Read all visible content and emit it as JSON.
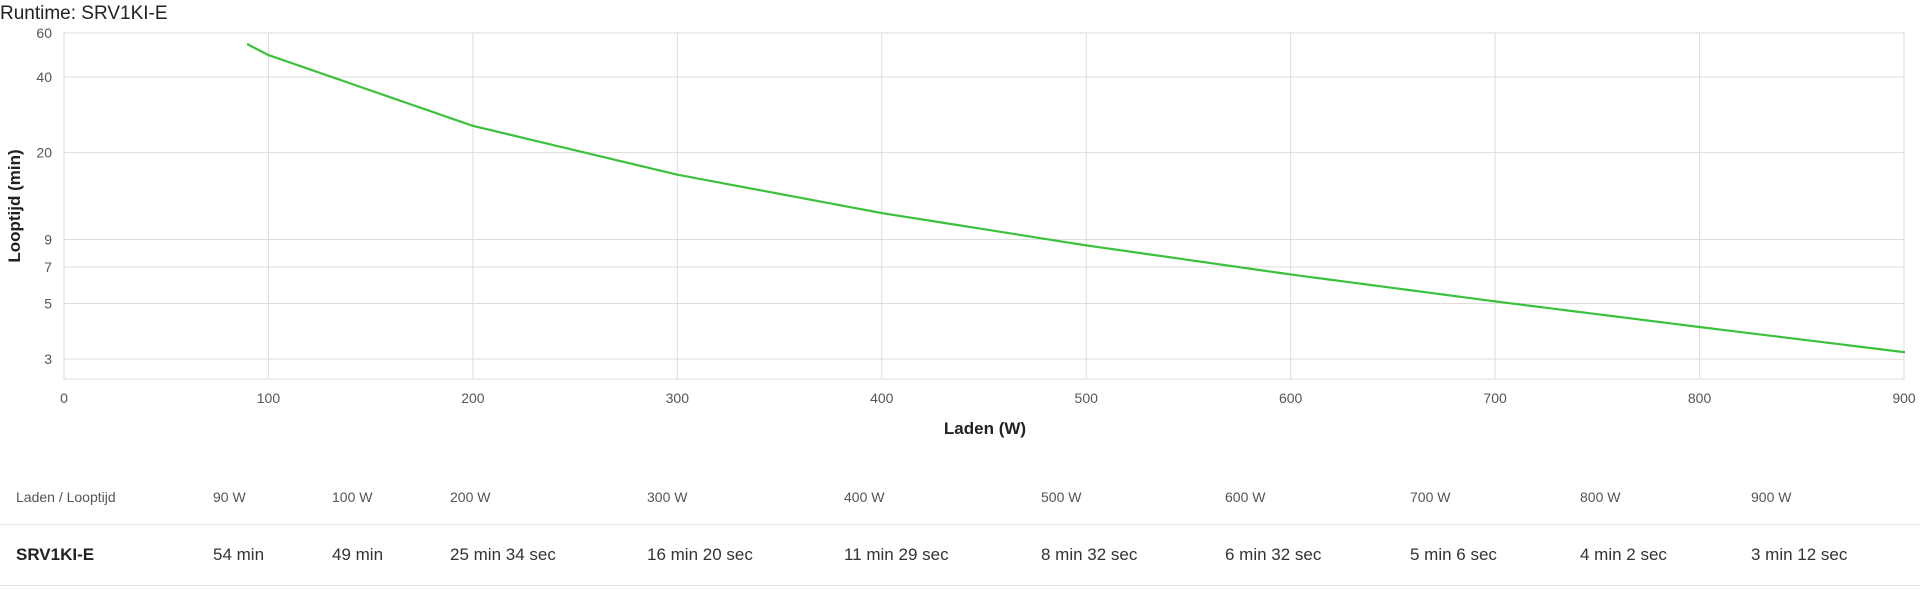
{
  "chart_data": {
    "type": "line",
    "title": "Runtime: SRV1KI-E",
    "xlabel": "Laden (W)",
    "ylabel": "Looptijd (min)",
    "xlim": [
      0,
      900
    ],
    "ylim": [
      2.5,
      60
    ],
    "yscale": "log",
    "grid": true,
    "x_ticks": [
      "0",
      "100",
      "200",
      "300",
      "400",
      "500",
      "600",
      "700",
      "800",
      "900"
    ],
    "y_ticks": [
      "3",
      "5",
      "7",
      "9",
      "20",
      "40",
      "60"
    ],
    "series": [
      {
        "color": "#3cc13c",
        "x": [
          90,
          100,
          200,
          300,
          400,
          500,
          600,
          700,
          800,
          900
        ],
        "y": [
          54,
          49,
          25.57,
          16.33,
          11.48,
          8.53,
          6.53,
          5.1,
          4.03,
          3.2
        ]
      }
    ]
  },
  "table": {
    "header_label": "Laden / Looptijd",
    "loads": [
      "90 W",
      "100 W",
      "200 W",
      "300 W",
      "400 W",
      "500 W",
      "600 W",
      "700 W",
      "800 W",
      "900 W"
    ],
    "model": "SRV1KI-E",
    "runtimes": [
      "54 min",
      "49 min",
      "25 min 34 sec",
      "16 min 20 sec",
      "11 min 29 sec",
      "8 min 32 sec",
      "6 min 32 sec",
      "5 min 6 sec",
      "4 min 2 sec",
      "3 min 12 sec"
    ]
  }
}
